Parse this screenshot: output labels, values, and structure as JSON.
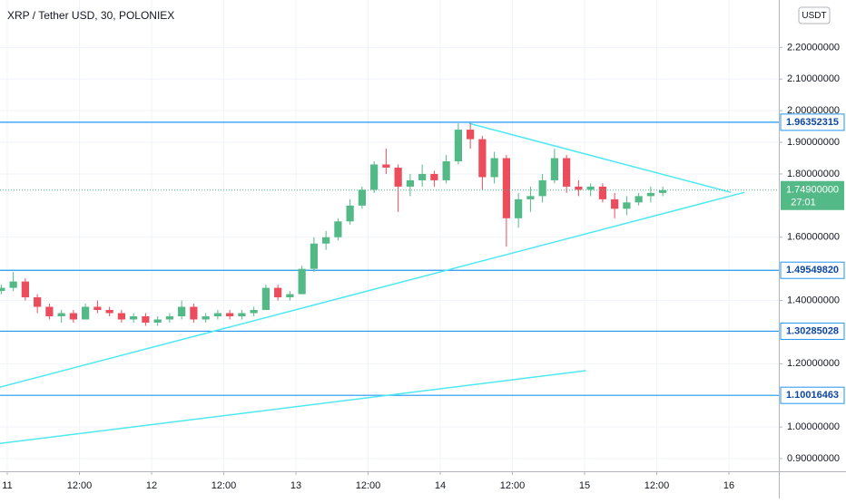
{
  "chart_data": {
    "type": "candlestick",
    "title": "XRP / Tether USD, 30, POLONIEX",
    "currency": "USDT",
    "up_color": "#53b987",
    "down_color": "#eb4d5c",
    "grid": true,
    "xlim": [
      -1.21,
      128.3
    ],
    "ylim": [
      0.86,
      2.35
    ],
    "xticks": [
      {
        "value": 0,
        "label": "11"
      },
      {
        "value": 12,
        "label": "12:00"
      },
      {
        "value": 24,
        "label": "12"
      },
      {
        "value": 36,
        "label": "12:00"
      },
      {
        "value": 48,
        "label": "13"
      },
      {
        "value": 60,
        "label": "12:00"
      },
      {
        "value": 72,
        "label": "14"
      },
      {
        "value": 84,
        "label": "12:00"
      },
      {
        "value": 96,
        "label": "15"
      },
      {
        "value": 108,
        "label": "12:00"
      },
      {
        "value": 120,
        "label": "16"
      }
    ],
    "yticks": [
      {
        "value": 0.9,
        "label": "0.90000000"
      },
      {
        "value": 1.0,
        "label": "1.00000000"
      },
      {
        "value": 1.2,
        "label": "1.20000000"
      },
      {
        "value": 1.4,
        "label": "1.40000000"
      },
      {
        "value": 1.6,
        "label": "1.60000000"
      },
      {
        "value": 1.8,
        "label": "1.80000000"
      },
      {
        "value": 1.9,
        "label": "1.90000000"
      },
      {
        "value": 2.0,
        "label": "2.00000000"
      },
      {
        "value": 2.1,
        "label": "2.10000000"
      },
      {
        "value": 2.2,
        "label": "2.20000000"
      }
    ],
    "x": [
      -1,
      1,
      3,
      5,
      7,
      9,
      11,
      13,
      15,
      17,
      19,
      21,
      23,
      25,
      27,
      29,
      31,
      33,
      35,
      37,
      39,
      41,
      43,
      45,
      47,
      49,
      51,
      53,
      55,
      57,
      59,
      61,
      63,
      65,
      67,
      69,
      71,
      73,
      75,
      77,
      79,
      81,
      83,
      85,
      87,
      89,
      91,
      93,
      95,
      97,
      99,
      101,
      103,
      105,
      107,
      109
    ],
    "open": [
      1.43,
      1.44,
      1.46,
      1.41,
      1.38,
      1.35,
      1.36,
      1.34,
      1.38,
      1.37,
      1.36,
      1.34,
      1.35,
      1.33,
      1.34,
      1.35,
      1.38,
      1.34,
      1.35,
      1.36,
      1.35,
      1.36,
      1.37,
      1.44,
      1.41,
      1.42,
      1.5,
      1.58,
      1.6,
      1.65,
      1.7,
      1.75,
      1.83,
      1.82,
      1.76,
      1.78,
      1.8,
      1.78,
      1.84,
      1.94,
      1.91,
      1.79,
      1.85,
      1.66,
      1.72,
      1.73,
      1.78,
      1.85,
      1.76,
      1.75,
      1.76,
      1.72,
      1.69,
      1.71,
      1.73,
      1.74
    ],
    "high": [
      1.45,
      1.49,
      1.47,
      1.42,
      1.39,
      1.37,
      1.37,
      1.39,
      1.4,
      1.38,
      1.37,
      1.36,
      1.36,
      1.35,
      1.36,
      1.4,
      1.39,
      1.36,
      1.37,
      1.37,
      1.37,
      1.38,
      1.45,
      1.45,
      1.43,
      1.51,
      1.6,
      1.62,
      1.66,
      1.72,
      1.76,
      1.84,
      1.88,
      1.83,
      1.8,
      1.83,
      1.81,
      1.86,
      1.96,
      1.96,
      1.92,
      1.87,
      1.86,
      1.74,
      1.76,
      1.8,
      1.88,
      1.86,
      1.78,
      1.77,
      1.77,
      1.74,
      1.73,
      1.74,
      1.76,
      1.76
    ],
    "low": [
      1.42,
      1.43,
      1.4,
      1.36,
      1.34,
      1.33,
      1.33,
      1.34,
      1.36,
      1.35,
      1.33,
      1.33,
      1.32,
      1.32,
      1.33,
      1.34,
      1.33,
      1.33,
      1.34,
      1.34,
      1.34,
      1.35,
      1.37,
      1.4,
      1.4,
      1.42,
      1.49,
      1.56,
      1.59,
      1.64,
      1.69,
      1.74,
      1.8,
      1.68,
      1.73,
      1.76,
      1.76,
      1.77,
      1.83,
      1.88,
      1.75,
      1.77,
      1.57,
      1.63,
      1.68,
      1.71,
      1.77,
      1.74,
      1.73,
      1.73,
      1.71,
      1.66,
      1.67,
      1.7,
      1.71,
      1.73
    ],
    "close": [
      1.44,
      1.46,
      1.41,
      1.38,
      1.35,
      1.36,
      1.34,
      1.38,
      1.37,
      1.36,
      1.34,
      1.35,
      1.33,
      1.34,
      1.35,
      1.38,
      1.34,
      1.35,
      1.36,
      1.35,
      1.36,
      1.37,
      1.44,
      1.41,
      1.42,
      1.5,
      1.58,
      1.6,
      1.65,
      1.7,
      1.75,
      1.83,
      1.82,
      1.76,
      1.78,
      1.8,
      1.78,
      1.84,
      1.94,
      1.91,
      1.79,
      1.85,
      1.66,
      1.72,
      1.73,
      1.78,
      1.85,
      1.76,
      1.75,
      1.76,
      1.72,
      1.69,
      1.71,
      1.73,
      1.74,
      1.749
    ],
    "levels": [
      {
        "value": 1.96352315,
        "label": "1.96352315"
      },
      {
        "value": 1.4954982,
        "label": "1.49549820"
      },
      {
        "value": 1.30285028,
        "label": "1.30285028"
      },
      {
        "value": 1.10016463,
        "label": "1.10016463"
      }
    ],
    "level_color": "#2196f3",
    "last_price": {
      "value": 1.749,
      "label": "1.74900000"
    },
    "countdown": "27:01",
    "trendline_color": "#4de8f0",
    "trendlines": [
      {
        "x": [
          -1.21,
          122.6
        ],
        "y": [
          1.126,
          1.742
        ]
      },
      {
        "x": [
          76.8,
          120.3
        ],
        "y": [
          1.96,
          1.742
        ]
      },
      {
        "x": [
          -1.21,
          96.2
        ],
        "y": [
          0.948,
          1.178
        ]
      }
    ]
  }
}
